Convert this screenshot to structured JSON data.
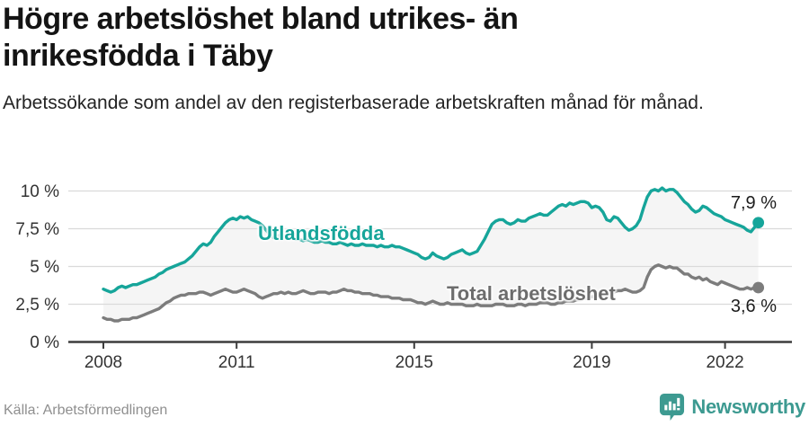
{
  "header": {
    "title": "Högre arbetslöshet bland utrikes- än inrikesfödda i Täby",
    "subtitle": "Arbetssökande som andel av den registerbaserade arbetskraften månad för månad."
  },
  "footer": {
    "source": "Källa: Arbetsförmedlingen",
    "brand": "Newsworthy",
    "brand_icon": "bar-chart-speech-bubble-icon"
  },
  "colors": {
    "series_utlandsfodda": "#16a59a",
    "series_total": "#7c7c7c",
    "total_label": "#6d6d6d",
    "band_fill": "#f5f5f5",
    "gridline": "#dadada",
    "axis": "#3d3d3d",
    "tick_label": "#333333",
    "brand_teal": "#3d9a91"
  },
  "chart_data": {
    "type": "line",
    "title": "Högre arbetslöshet bland utrikes- än inrikesfödda i Täby",
    "subtitle": "Arbetssökande som andel av den registerbaserade arbetskraften månad för månad.",
    "x_start_year": 2008,
    "x_frequency": "monthly",
    "x_end": "2022-10",
    "x_tick_years": [
      2008,
      2011,
      2015,
      2019,
      2022
    ],
    "x_tick_labels": [
      "2008",
      "2011",
      "2015",
      "2019",
      "2022"
    ],
    "y_ticks": [
      0,
      2.5,
      5,
      7.5,
      10
    ],
    "y_tick_labels": [
      "0 %",
      "2,5 %",
      "5 %",
      "7,5 %",
      "10 %"
    ],
    "ylim": [
      0,
      10.5
    ],
    "grid": "horizontal",
    "fill_between_series": true,
    "legend_position": "inline-labels",
    "series": [
      {
        "name": "Utlandsfödda",
        "end_label": "7,9 %",
        "end_value": 7.9,
        "values": [
          3.5,
          3.4,
          3.3,
          3.4,
          3.6,
          3.7,
          3.6,
          3.7,
          3.8,
          3.8,
          3.9,
          4.0,
          4.1,
          4.2,
          4.3,
          4.5,
          4.6,
          4.8,
          4.9,
          5.0,
          5.1,
          5.2,
          5.3,
          5.5,
          5.7,
          6.0,
          6.3,
          6.5,
          6.4,
          6.6,
          7.0,
          7.3,
          7.6,
          7.9,
          8.1,
          8.2,
          8.1,
          8.3,
          8.2,
          8.3,
          8.1,
          8.0,
          7.9,
          7.7,
          7.4,
          7.1,
          6.9,
          7.0,
          7.1,
          7.0,
          6.9,
          6.9,
          6.8,
          6.8,
          6.7,
          6.8,
          6.7,
          6.6,
          6.6,
          6.7,
          6.6,
          6.6,
          6.5,
          6.5,
          6.6,
          6.5,
          6.4,
          6.5,
          6.4,
          6.4,
          6.5,
          6.4,
          6.4,
          6.4,
          6.3,
          6.4,
          6.3,
          6.3,
          6.4,
          6.3,
          6.3,
          6.2,
          6.1,
          6.0,
          5.9,
          5.8,
          5.6,
          5.5,
          5.6,
          5.9,
          5.7,
          5.6,
          5.5,
          5.6,
          5.8,
          5.9,
          6.0,
          6.1,
          5.9,
          5.8,
          5.9,
          6.0,
          6.4,
          6.8,
          7.3,
          7.8,
          8.0,
          8.1,
          8.1,
          7.9,
          7.8,
          7.9,
          8.1,
          8.0,
          8.0,
          8.2,
          8.3,
          8.4,
          8.5,
          8.4,
          8.4,
          8.6,
          8.8,
          9.0,
          9.1,
          9.0,
          9.2,
          9.1,
          9.2,
          9.3,
          9.3,
          9.2,
          8.9,
          9.0,
          8.9,
          8.6,
          8.1,
          8.0,
          8.3,
          8.2,
          7.9,
          7.6,
          7.4,
          7.5,
          7.7,
          8.1,
          8.9,
          9.6,
          10.0,
          10.1,
          10.0,
          10.2,
          10.0,
          10.1,
          10.1,
          9.9,
          9.6,
          9.3,
          9.1,
          8.8,
          8.6,
          8.7,
          9.0,
          8.9,
          8.7,
          8.5,
          8.4,
          8.3,
          8.1,
          8.0,
          7.9,
          7.8,
          7.7,
          7.6,
          7.4,
          7.3,
          7.6,
          7.9
        ]
      },
      {
        "name": "Total arbetslöshet",
        "end_label": "3,6 %",
        "end_value": 3.6,
        "values": [
          1.6,
          1.5,
          1.5,
          1.4,
          1.4,
          1.5,
          1.5,
          1.5,
          1.6,
          1.6,
          1.7,
          1.8,
          1.9,
          2.0,
          2.1,
          2.2,
          2.4,
          2.6,
          2.7,
          2.9,
          3.0,
          3.1,
          3.1,
          3.2,
          3.2,
          3.2,
          3.3,
          3.3,
          3.2,
          3.1,
          3.2,
          3.3,
          3.4,
          3.5,
          3.4,
          3.3,
          3.3,
          3.4,
          3.5,
          3.4,
          3.3,
          3.2,
          3.0,
          2.9,
          3.0,
          3.1,
          3.2,
          3.2,
          3.3,
          3.2,
          3.3,
          3.2,
          3.2,
          3.3,
          3.4,
          3.3,
          3.2,
          3.2,
          3.3,
          3.3,
          3.3,
          3.2,
          3.3,
          3.3,
          3.4,
          3.5,
          3.4,
          3.4,
          3.3,
          3.3,
          3.2,
          3.2,
          3.2,
          3.1,
          3.1,
          3.0,
          3.0,
          3.0,
          2.9,
          2.9,
          2.9,
          2.8,
          2.8,
          2.8,
          2.7,
          2.6,
          2.6,
          2.5,
          2.6,
          2.7,
          2.6,
          2.5,
          2.5,
          2.6,
          2.5,
          2.5,
          2.5,
          2.5,
          2.4,
          2.4,
          2.4,
          2.5,
          2.4,
          2.4,
          2.4,
          2.4,
          2.5,
          2.5,
          2.5,
          2.4,
          2.4,
          2.4,
          2.5,
          2.5,
          2.4,
          2.5,
          2.5,
          2.5,
          2.6,
          2.6,
          2.6,
          2.5,
          2.5,
          2.6,
          2.6,
          2.7,
          2.7,
          2.7,
          2.8,
          2.8,
          2.9,
          2.9,
          3.0,
          3.0,
          3.1,
          3.1,
          3.2,
          3.3,
          3.3,
          3.4,
          3.4,
          3.5,
          3.4,
          3.3,
          3.3,
          3.4,
          3.6,
          4.3,
          4.8,
          5.0,
          5.1,
          5.0,
          4.9,
          5.0,
          4.9,
          4.9,
          4.7,
          4.5,
          4.5,
          4.3,
          4.2,
          4.3,
          4.1,
          4.2,
          4.0,
          3.9,
          3.8,
          4.0,
          3.9,
          3.8,
          3.7,
          3.6,
          3.5,
          3.5,
          3.6,
          3.5,
          3.6,
          3.6
        ]
      }
    ]
  }
}
